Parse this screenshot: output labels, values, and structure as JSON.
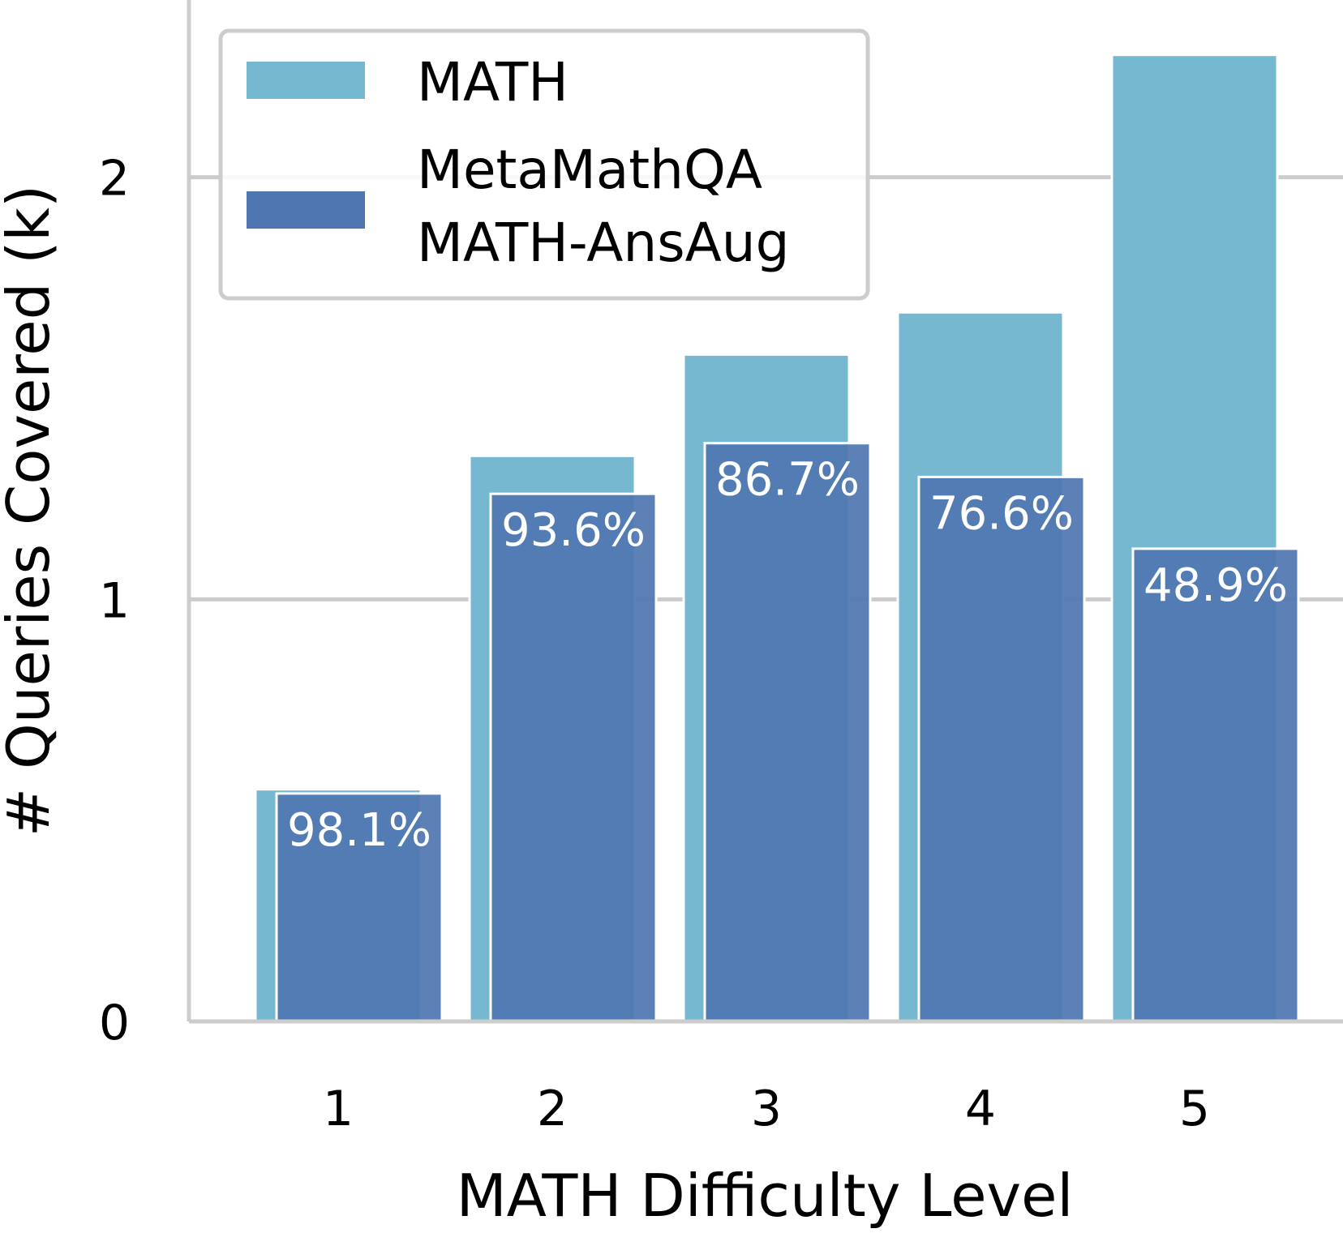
{
  "chart_data": {
    "type": "bar",
    "categories": [
      "1",
      "2",
      "3",
      "4",
      "5"
    ],
    "series": [
      {
        "name": "MATH",
        "values": [
          0.55,
          1.34,
          1.58,
          1.68,
          2.29
        ],
        "color": "#75b8d0"
      },
      {
        "name": "MetaMathQA\nMATH-AnsAug",
        "values": [
          0.54,
          1.25,
          1.37,
          1.29,
          1.12
        ],
        "color": "#4f76b0"
      }
    ],
    "bar_labels": [
      "98.1%",
      "93.6%",
      "86.7%",
      "76.6%",
      "48.9%"
    ],
    "xlabel": "MATH Difficulty Level",
    "ylabel": "# Queries Covered (k)",
    "yticks": [
      "0",
      "1",
      "2"
    ],
    "ylim": [
      0,
      2.42
    ],
    "grid": true,
    "legend_position": "top-left"
  }
}
